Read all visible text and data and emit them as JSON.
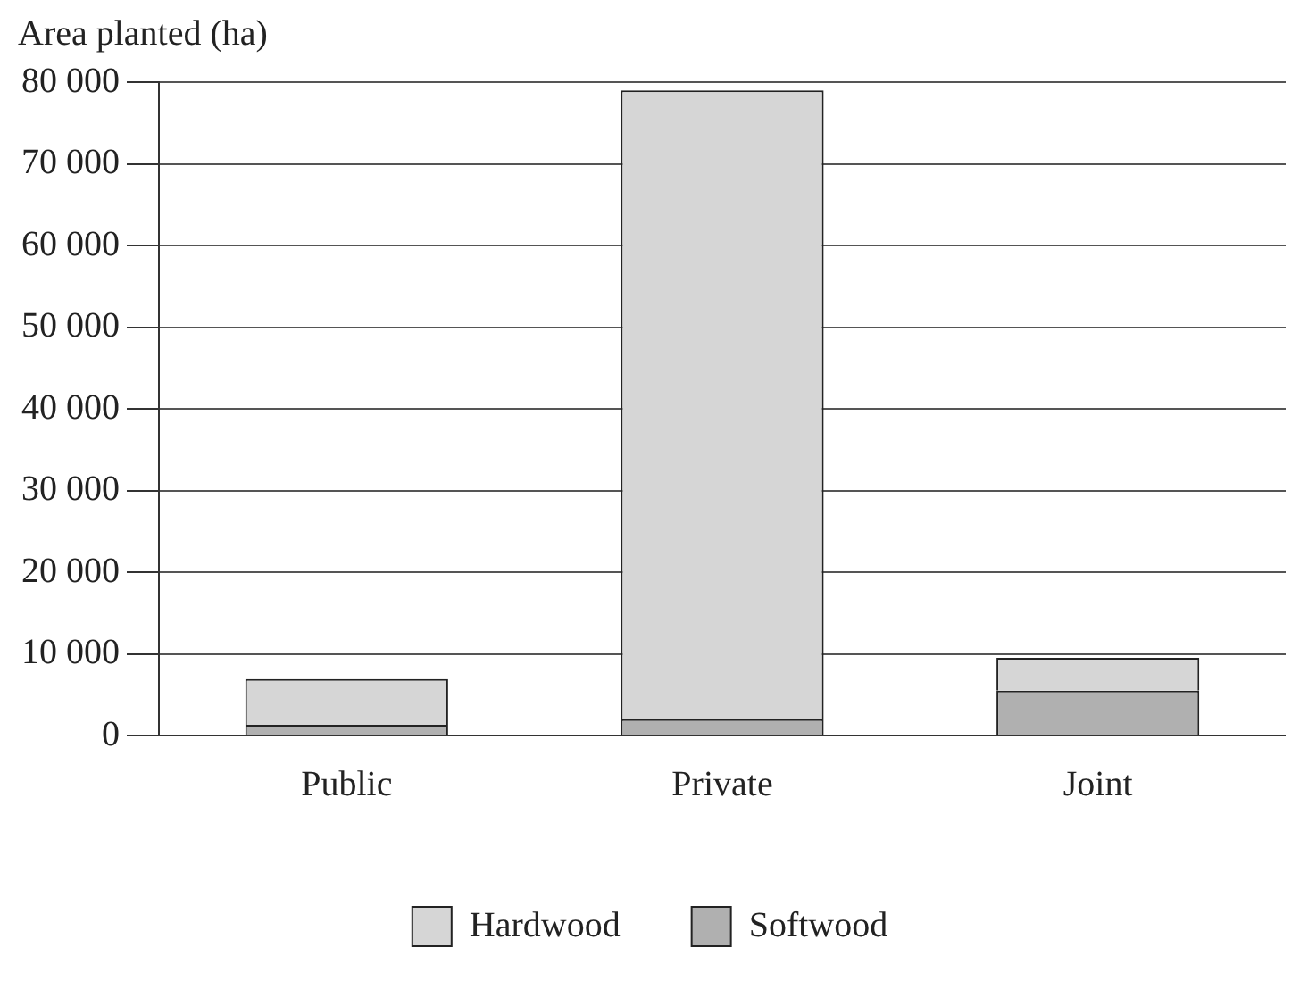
{
  "chart_data": {
    "type": "bar",
    "ylabel": "Area planted (ha)",
    "categories": [
      "Public",
      "Private",
      "Joint"
    ],
    "stacked": true,
    "series": [
      {
        "name": "Softwood",
        "color": "#b0b0b0",
        "values": [
          1300,
          2000,
          5500
        ]
      },
      {
        "name": "Hardwood",
        "color": "#d6d6d6",
        "values": [
          5600,
          77000,
          4000
        ]
      }
    ],
    "ylim": [
      0,
      80000
    ],
    "yticks": [
      {
        "value": 0,
        "label": "0"
      },
      {
        "value": 10000,
        "label": "10 000"
      },
      {
        "value": 20000,
        "label": "20 000"
      },
      {
        "value": 30000,
        "label": "30 000"
      },
      {
        "value": 40000,
        "label": "40 000"
      },
      {
        "value": 50000,
        "label": "50 000"
      },
      {
        "value": 60000,
        "label": "60 000"
      },
      {
        "value": 70000,
        "label": "70 000"
      },
      {
        "value": 80000,
        "label": "80 000"
      }
    ],
    "grid": "y",
    "legend": "bottom"
  }
}
